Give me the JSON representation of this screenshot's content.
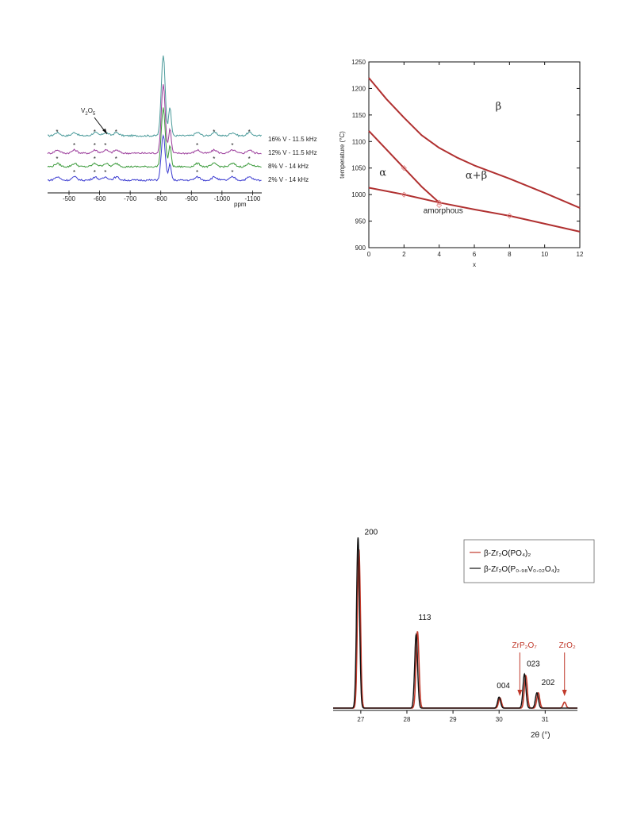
{
  "chart_data": [
    {
      "id": "nmr",
      "type": "line",
      "xlabel": "ppm",
      "xlim": [
        -430,
        -1130
      ],
      "x_ticks": [
        -500,
        -600,
        -700,
        -800,
        -900,
        -1000,
        -1100
      ],
      "annotation": "V2O5",
      "series": [
        {
          "name": "16% V - 11.5 kHz",
          "color": "#4a9a9a"
        },
        {
          "name": "12% V - 11.5 kHz",
          "color": "#9a3a9a"
        },
        {
          "name": "8% V - 14 kHz",
          "color": "#3a9a3a"
        },
        {
          "name": "2% V - 14 kHz",
          "color": "#3a3ad0"
        }
      ],
      "main_peak_ppm": -808,
      "sideband_ppm": [
        -462,
        -518,
        -585,
        -620,
        -655,
        -920,
        -975,
        -1035,
        -1090
      ]
    },
    {
      "id": "phase",
      "type": "line",
      "xlabel": "x",
      "ylabel": "temperature (°C)",
      "xlim": [
        0,
        12
      ],
      "ylim": [
        900,
        1250
      ],
      "x_ticks": [
        0,
        2,
        4,
        6,
        8,
        10,
        12
      ],
      "y_ticks": [
        900,
        950,
        1000,
        1050,
        1100,
        1150,
        1200,
        1250
      ],
      "regions": [
        "β",
        "α+β",
        "α",
        "amorphous"
      ],
      "region_positions": [
        {
          "x": 7.2,
          "y": 1160
        },
        {
          "x": 5.5,
          "y": 1030
        },
        {
          "x": 0.6,
          "y": 1035
        },
        {
          "x": 3.1,
          "y": 965
        }
      ],
      "boundaries": [
        {
          "x": [
            0,
            1,
            2,
            3,
            4,
            5,
            6,
            8,
            10,
            12
          ],
          "y": [
            1220,
            1180,
            1145,
            1112,
            1088,
            1070,
            1055,
            1030,
            1003,
            975
          ]
        },
        {
          "x": [
            0,
            1,
            2,
            3,
            4
          ],
          "y": [
            1120,
            1085,
            1050,
            1015,
            985
          ]
        },
        {
          "x": [
            0,
            2,
            4,
            6,
            8,
            10,
            12
          ],
          "y": [
            1013,
            1000,
            985,
            972,
            960,
            945,
            930
          ]
        }
      ],
      "points": [
        {
          "x": 2,
          "y": 1050
        },
        {
          "x": 2,
          "y": 1000
        },
        {
          "x": 4,
          "y": 985
        },
        {
          "x": 4,
          "y": 980
        },
        {
          "x": 8,
          "y": 960
        }
      ]
    },
    {
      "id": "xrd",
      "type": "line",
      "xlabel": "2θ (°)",
      "xlim": [
        26.4,
        31.7
      ],
      "x_ticks": [
        27,
        28,
        29,
        30,
        31
      ],
      "series": [
        {
          "name": "β-Zr₂O(PO₄)₂",
          "color": "#c0392b",
          "peaks": [
            {
              "x": 26.96,
              "h": 0.93
            },
            {
              "x": 28.23,
              "h": 0.45
            },
            {
              "x": 30.02,
              "h": 0.06
            },
            {
              "x": 30.58,
              "h": 0.19
            },
            {
              "x": 30.85,
              "h": 0.09
            },
            {
              "x": 31.42,
              "h": 0.035
            }
          ]
        },
        {
          "name": "β-Zr₂O(P₀.₉₈V₀.₀₂O₄)₂",
          "color": "#111111",
          "peaks": [
            {
              "x": 26.94,
              "h": 1.0
            },
            {
              "x": 28.2,
              "h": 0.43
            },
            {
              "x": 30.0,
              "h": 0.065
            },
            {
              "x": 30.55,
              "h": 0.2
            },
            {
              "x": 30.82,
              "h": 0.09
            }
          ]
        }
      ],
      "peak_labels": [
        {
          "text": "200",
          "x": 27.08,
          "h": 1.02
        },
        {
          "text": "113",
          "x": 28.25,
          "h": 0.52
        },
        {
          "text": "004",
          "x": 29.95,
          "h": 0.12
        },
        {
          "text": "023",
          "x": 30.6,
          "h": 0.25
        },
        {
          "text": "202",
          "x": 30.92,
          "h": 0.14
        }
      ],
      "impurity_labels": [
        {
          "text": "ZrP₂O₇",
          "x": 30.55,
          "target_x": 30.45
        },
        {
          "text": "ZrO₂",
          "x": 31.48,
          "target_x": 31.42
        }
      ]
    }
  ]
}
